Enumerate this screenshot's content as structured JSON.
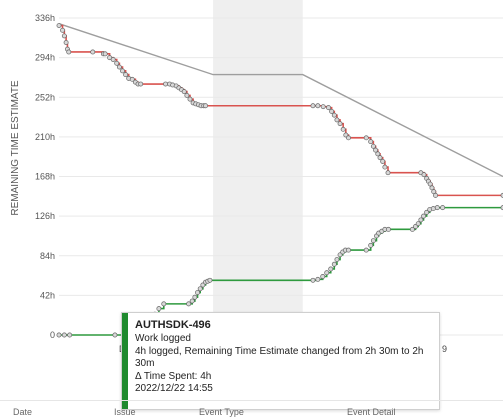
{
  "chart_data": {
    "type": "line",
    "ylabel": "REMAINING TIME ESTIMATE",
    "y_ticks": [
      "0",
      "42h",
      "84h",
      "126h",
      "168h",
      "210h",
      "252h",
      "294h",
      "336h"
    ],
    "ylim": [
      0,
      340
    ],
    "xlim": [
      0,
      100
    ],
    "grid": true,
    "highlight_band": [
      34.7,
      54.9
    ],
    "series": [
      {
        "color": "#9e9e9e",
        "x": [
          0,
          34.7,
          54.9,
          100
        ],
        "y": [
          330,
          276,
          276,
          168
        ]
      },
      {
        "color": "#d9534f",
        "x": [
          0,
          0.8,
          1.2,
          1.6,
          1.9,
          2.2,
          7.6,
          10.0,
          10.4,
          11.4,
          12.2,
          13.0,
          13.6,
          14.3,
          15.0,
          15.7,
          16.5,
          17.2,
          17.8,
          18.4,
          24.0,
          24.9,
          25.6,
          26.4,
          27.0,
          27.6,
          28.2,
          28.8,
          29.5,
          30.2,
          30.8,
          31.4,
          32.0,
          32.6,
          33.0,
          57.2,
          58.3,
          59.5,
          60.7,
          61.4,
          62.0,
          62.6,
          63.3,
          64.0,
          64.6,
          65.2,
          69.2,
          70.2,
          70.8,
          71.3,
          71.8,
          72.3,
          72.9,
          73.4,
          74.1,
          81.5,
          82.2,
          82.8,
          83.2,
          83.6,
          84.0,
          84.4,
          84.8,
          100
        ],
        "y": [
          328,
          323,
          317,
          310,
          303,
          300,
          300,
          298,
          298,
          294,
          292,
          288,
          284,
          280,
          276,
          272,
          271,
          268,
          266,
          266,
          266,
          266,
          265,
          264,
          262,
          260,
          258,
          254,
          250,
          246,
          245,
          244,
          243,
          243,
          243,
          243,
          243,
          242,
          241,
          237,
          233,
          228,
          224,
          218,
          212,
          209,
          209,
          205,
          200,
          196,
          192,
          188,
          184,
          178,
          172,
          172,
          170,
          166,
          163,
          160,
          156,
          152,
          148,
          148
        ]
      },
      {
        "color": "#2e9a3e",
        "x": [
          0,
          1.2,
          2.4,
          12.6,
          19.2,
          20.0,
          20.8,
          21.6,
          22.5,
          23.6,
          29.2,
          30.0,
          30.6,
          31.2,
          31.8,
          32.4,
          33.0,
          33.5,
          34.0,
          57.2,
          58.3,
          59.4,
          60.3,
          61.2,
          62.0,
          62.6,
          63.3,
          63.9,
          64.5,
          65.2,
          69.2,
          70.2,
          70.8,
          71.5,
          72.0,
          72.7,
          73.4,
          74.2,
          79.6,
          80.3,
          80.9,
          81.5,
          82.1,
          82.8,
          83.5,
          84.3,
          85.2,
          86.4,
          100
        ],
        "y": [
          0,
          0,
          0,
          0,
          4,
          10,
          16,
          22,
          28,
          33,
          33,
          36,
          40,
          45,
          49,
          53,
          56,
          57,
          58,
          58,
          59,
          62,
          66,
          70,
          75,
          80,
          85,
          88,
          90,
          90,
          90,
          95,
          100,
          105,
          108,
          110,
          112,
          112,
          112,
          115,
          118,
          122,
          126,
          130,
          133,
          134,
          135,
          135,
          135
        ]
      }
    ]
  },
  "x_fragments": {
    "left": "D",
    "right": "9"
  },
  "tooltip": {
    "title": "AUTHSDK-496",
    "event": "Work logged",
    "detail": "4h logged, Remaining Time Estimate changed from 2h 30m to 2h 30m",
    "delta": "Δ Time Spent: 4h",
    "date": "2022/12/22 14:55",
    "accent_color": "#1f8a2e"
  },
  "table_header": {
    "columns": [
      "Date",
      "Issue",
      "Event Type",
      "Event Detail"
    ]
  }
}
